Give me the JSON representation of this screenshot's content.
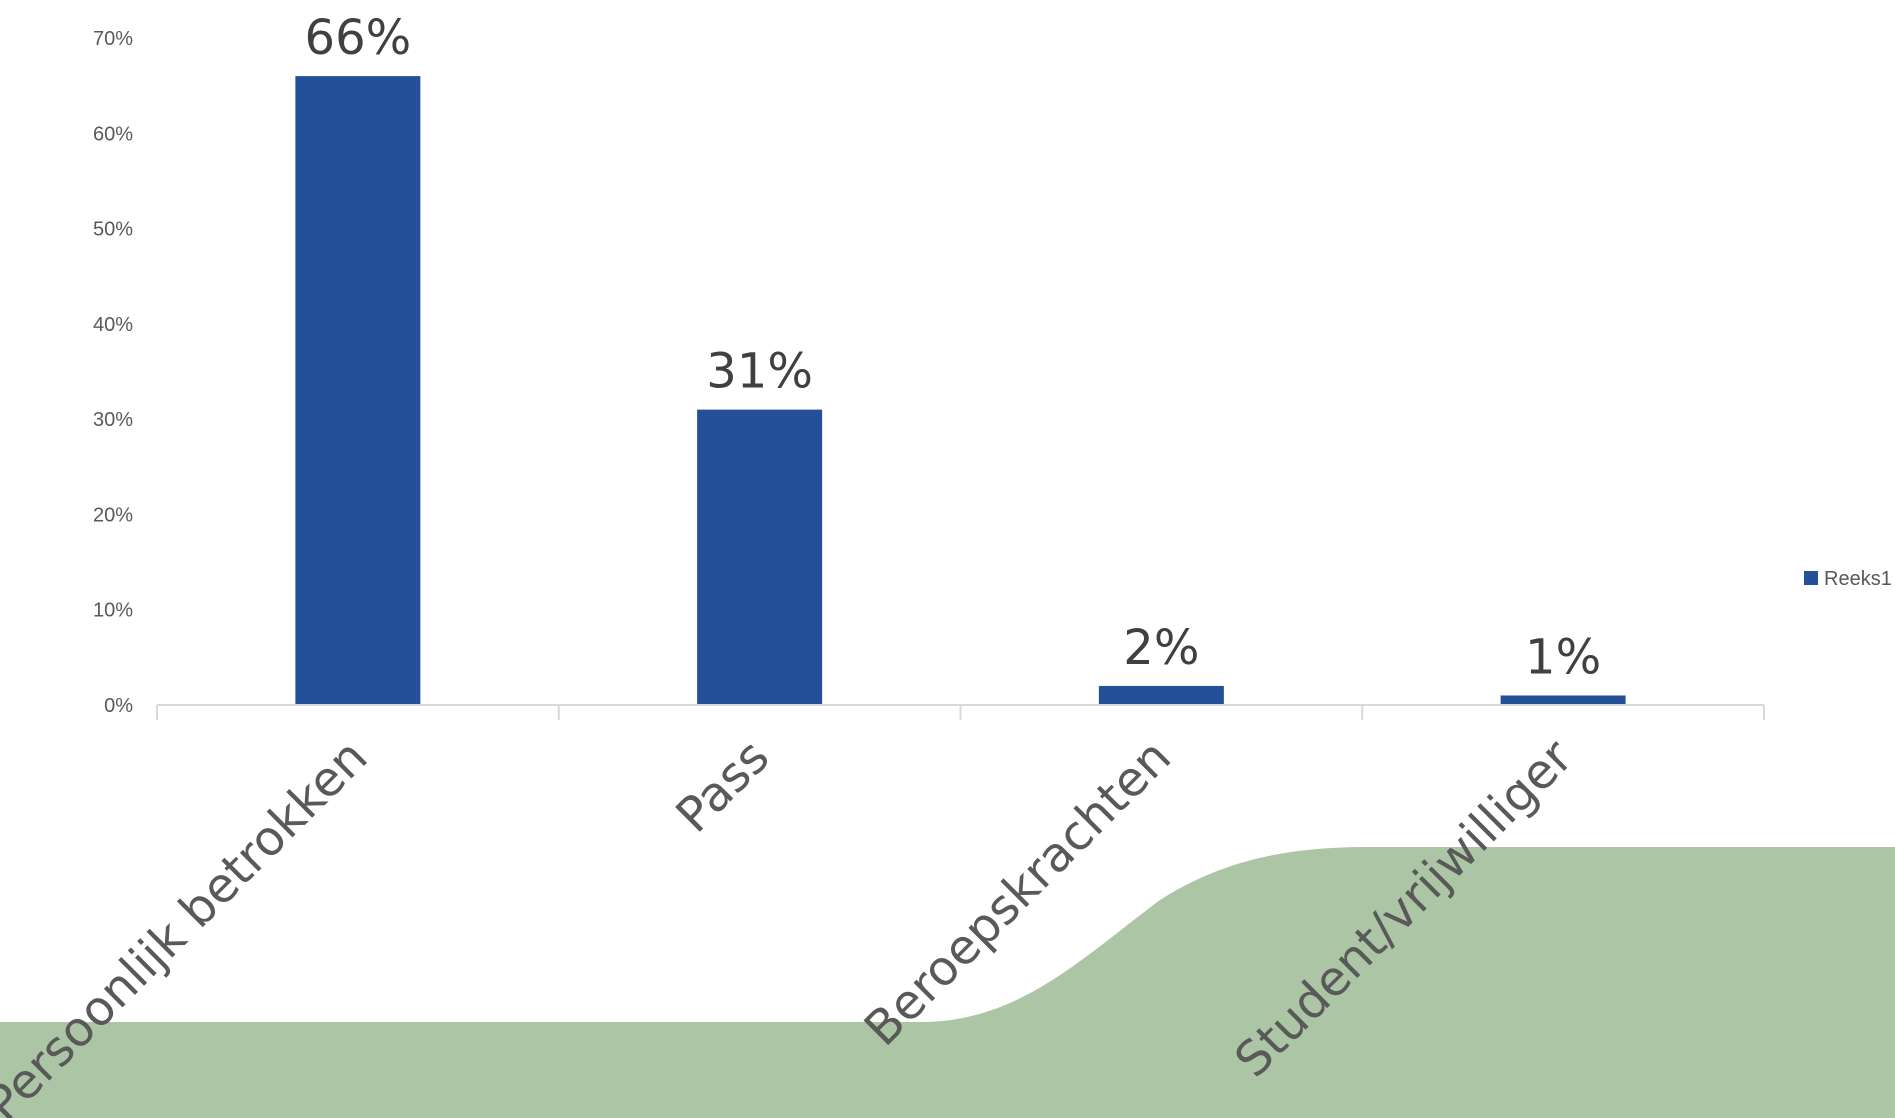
{
  "chart_data": {
    "type": "bar",
    "categories": [
      "Persoonlijk betrokken",
      "Pass",
      "Beroepskrachten",
      "Student/vrijwilliger"
    ],
    "series": [
      {
        "name": "Reeks1",
        "values": [
          66,
          31,
          2,
          1
        ],
        "color": "#24509A"
      }
    ],
    "data_labels": [
      "66%",
      "31%",
      "2%",
      "1%"
    ],
    "y_ticks": [
      "0%",
      "10%",
      "20%",
      "30%",
      "40%",
      "50%",
      "60%",
      "70%"
    ],
    "ylim": [
      0,
      70
    ],
    "legend_position": "right",
    "grid": false,
    "background_shape_color": "#ACC6A5"
  }
}
